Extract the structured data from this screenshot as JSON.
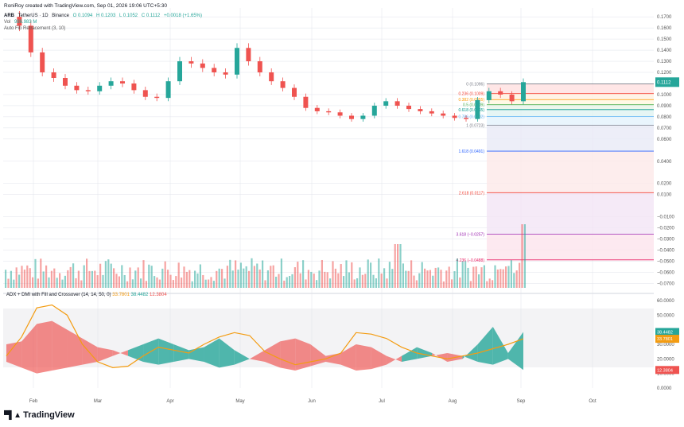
{
  "header": {
    "credit": "RoniRoy created with TradingView.com, Sep 01, 2026 19:06 UTC+5:30",
    "symbol": "ARB",
    "pair": "TetherUS · 1D",
    "exchange": "Binance",
    "open": "O 0.1094",
    "high": "H 0.1203",
    "low": "L 0.1052",
    "close": "C 0.1112",
    "change": "+0.0018 (+1.65%)",
    "vol_label": "Vol",
    "vol_value": "986.983 M",
    "fib_label": "Auto Fib Retracement (3, 10)"
  },
  "indicator": {
    "name": "ADX + DMI with Fill and Crossover (14, 14, 50, 0)",
    "adx": "33.7801",
    "di_plus": "38.4482",
    "di_minus": "12.3804"
  },
  "logo": {
    "text": "TradingView",
    "icon": "tradingview-logo-icon"
  },
  "colors": {
    "up": "#26a69a",
    "down": "#ef5350",
    "adx": "#f39c12",
    "grid": "#e0e3eb"
  },
  "chart_data": [
    {
      "type": "candlestick",
      "title": "ARB/TetherUS · 1D · Binance",
      "x_labels": [
        "Feb",
        "Mar",
        "Apr",
        "May",
        "Jun",
        "Jul",
        "Aug",
        "Sep",
        "Oct"
      ],
      "y_ticks": [
        "0.1700",
        "0.1600",
        "0.1500",
        "0.1400",
        "0.1300",
        "0.1200",
        "0.1000",
        "0.0900",
        "0.0800",
        "0.0700",
        "0.0600",
        "0.0400",
        "0.0200",
        "0.0100",
        "−0.0100",
        "−0.0200",
        "−0.0300",
        "−0.0400",
        "−0.0500",
        "−0.0600",
        "−0.0700"
      ],
      "last_price": "0.1112",
      "close_series": [
        0.17,
        0.162,
        0.138,
        0.12,
        0.115,
        0.108,
        0.104,
        0.103,
        0.108,
        0.112,
        0.11,
        0.104,
        0.098,
        0.097,
        0.112,
        0.13,
        0.128,
        0.124,
        0.12,
        0.118,
        0.142,
        0.13,
        0.12,
        0.112,
        0.106,
        0.098,
        0.088,
        0.085,
        0.084,
        0.081,
        0.078,
        0.081,
        0.09,
        0.094,
        0.09,
        0.087,
        0.085,
        0.083,
        0.081,
        0.079,
        0.078,
        0.095,
        0.103,
        0.1,
        0.094,
        0.1112
      ],
      "fib_levels": [
        {
          "label": "0 (0.1096)",
          "value": 0.1096
        },
        {
          "label": "0.236 (0.1009)",
          "value": 0.1009
        },
        {
          "label": "0.382 (0.0955)",
          "value": 0.0955
        },
        {
          "label": "0.5 (0.0909)",
          "value": 0.0909
        },
        {
          "label": "0.618 (0.0865)",
          "value": 0.0865
        },
        {
          "label": "0.786 (0.0802)",
          "value": 0.0802
        },
        {
          "label": "1 (0.0723)",
          "value": 0.0723
        },
        {
          "label": "1.618 (0.0491)",
          "value": 0.0491
        },
        {
          "label": "2.618 (0.0117)",
          "value": 0.0117
        },
        {
          "label": "3.618 (−0.0257)",
          "value": -0.0257
        },
        {
          "label": "4.236 (−0.0488)",
          "value": -0.0488
        }
      ]
    },
    {
      "type": "line",
      "title": "ADX + DMI with Fill and Crossover (14, 14, 50, 0)",
      "y_ticks": [
        "60.0000",
        "50.0000",
        "30.0000",
        "20.0000",
        "10.0000",
        "0.0000"
      ],
      "ylim": [
        0,
        60
      ],
      "series": [
        {
          "name": "ADX",
          "values": [
            22,
            35,
            55,
            57,
            50,
            30,
            18,
            14,
            15,
            22,
            28,
            26,
            24,
            30,
            35,
            38,
            36,
            25,
            20,
            16,
            18,
            20,
            24,
            38,
            37,
            34,
            28,
            24,
            22,
            20,
            22,
            24,
            27,
            30,
            33.78
          ]
        },
        {
          "name": "DI+",
          "values": [
            18,
            14,
            10,
            12,
            14,
            16,
            18,
            22,
            26,
            30,
            34,
            30,
            26,
            28,
            34,
            26,
            20,
            18,
            14,
            12,
            15,
            18,
            16,
            12,
            13,
            16,
            22,
            28,
            24,
            18,
            20,
            30,
            42,
            24,
            38.45
          ]
        },
        {
          "name": "DI−",
          "values": [
            30,
            32,
            44,
            46,
            40,
            34,
            28,
            26,
            22,
            18,
            16,
            18,
            20,
            18,
            14,
            16,
            20,
            26,
            32,
            34,
            30,
            22,
            24,
            30,
            28,
            22,
            18,
            20,
            22,
            24,
            22,
            18,
            16,
            20,
            12.38
          ]
        }
      ]
    }
  ]
}
